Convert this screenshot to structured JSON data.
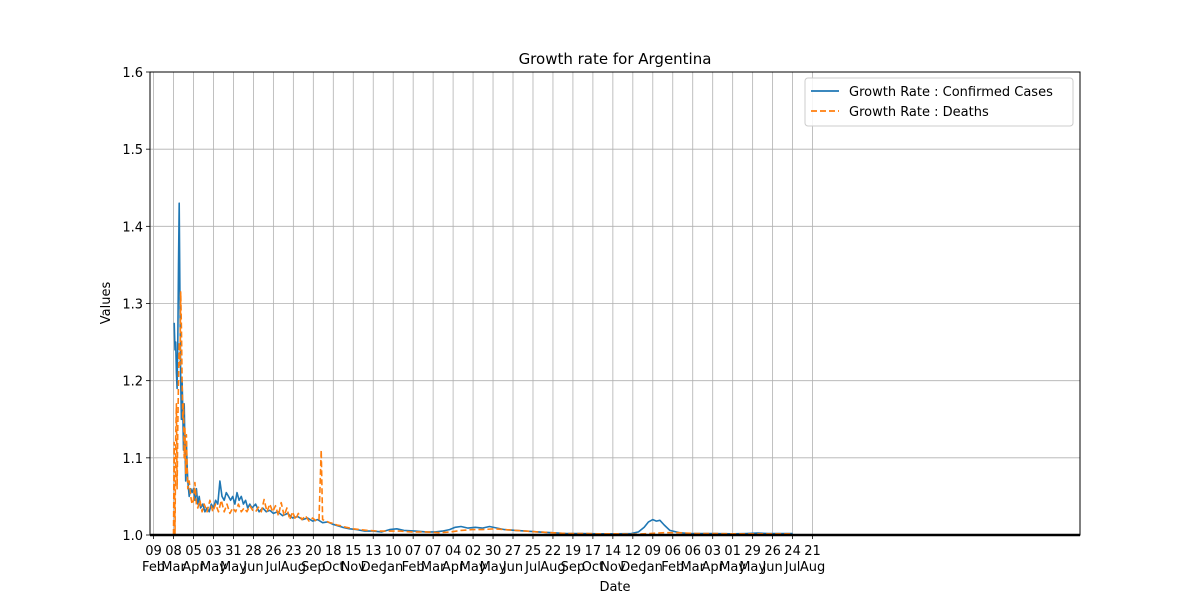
{
  "chart_data": {
    "type": "line",
    "title": "Growth rate for Argentina",
    "xlabel": "Date",
    "ylabel": "Values",
    "ylim": [
      1.0,
      1.6
    ],
    "xlim": [
      "2020-02-04",
      "2023-08-31"
    ],
    "grid": true,
    "legend_position": "top-right",
    "y_ticks": [
      "1.0",
      "1.1",
      "1.2",
      "1.3",
      "1.4",
      "1.5",
      "1.6"
    ],
    "x_ticks": [
      {
        "date": "2020-02-09",
        "day": "09",
        "month": "Feb"
      },
      {
        "date": "2020-03-08",
        "day": "08",
        "month": "Mar"
      },
      {
        "date": "2020-04-05",
        "day": "05",
        "month": "Apr"
      },
      {
        "date": "2020-05-03",
        "day": "03",
        "month": "May"
      },
      {
        "date": "2020-05-31",
        "day": "31",
        "month": "May"
      },
      {
        "date": "2020-06-28",
        "day": "28",
        "month": "Jun"
      },
      {
        "date": "2020-07-26",
        "day": "26",
        "month": "Jul"
      },
      {
        "date": "2020-08-23",
        "day": "23",
        "month": "Aug"
      },
      {
        "date": "2020-09-20",
        "day": "20",
        "month": "Sep"
      },
      {
        "date": "2020-10-18",
        "day": "18",
        "month": "Oct"
      },
      {
        "date": "2020-11-15",
        "day": "15",
        "month": "Nov"
      },
      {
        "date": "2020-12-13",
        "day": "13",
        "month": "Dec"
      },
      {
        "date": "2021-01-10",
        "day": "10",
        "month": "Jan"
      },
      {
        "date": "2021-02-07",
        "day": "07",
        "month": "Feb"
      },
      {
        "date": "2021-03-07",
        "day": "07",
        "month": "Mar"
      },
      {
        "date": "2021-04-04",
        "day": "04",
        "month": "Apr"
      },
      {
        "date": "2021-05-02",
        "day": "02",
        "month": "May"
      },
      {
        "date": "2021-05-30",
        "day": "30",
        "month": "May"
      },
      {
        "date": "2021-06-27",
        "day": "27",
        "month": "Jun"
      },
      {
        "date": "2021-07-25",
        "day": "25",
        "month": "Jul"
      },
      {
        "date": "2021-08-22",
        "day": "22",
        "month": "Aug"
      },
      {
        "date": "2021-09-19",
        "day": "19",
        "month": "Sep"
      },
      {
        "date": "2021-10-17",
        "day": "17",
        "month": "Oct"
      },
      {
        "date": "2021-11-14",
        "day": "14",
        "month": "Nov"
      },
      {
        "date": "2021-12-12",
        "day": "12",
        "month": "Dec"
      },
      {
        "date": "2022-01-09",
        "day": "09",
        "month": "Jan"
      },
      {
        "date": "2022-02-06",
        "day": "06",
        "month": "Feb"
      },
      {
        "date": "2022-03-06",
        "day": "06",
        "month": "Mar"
      },
      {
        "date": "2022-04-03",
        "day": "03",
        "month": "Apr"
      },
      {
        "date": "2022-05-01",
        "day": "01",
        "month": "May"
      },
      {
        "date": "2022-05-29",
        "day": "29",
        "month": "May"
      },
      {
        "date": "2022-06-26",
        "day": "26",
        "month": "Jun"
      },
      {
        "date": "2022-07-24",
        "day": "24",
        "month": "Jul"
      },
      {
        "date": "2022-08-21",
        "day": "21",
        "month": "Aug"
      }
    ],
    "series": [
      {
        "name": "Growth Rate : Confirmed Cases",
        "color": "#1f77b4",
        "style": "solid",
        "points": [
          [
            "2020-03-09",
            1.275
          ],
          [
            "2020-03-10",
            1.24
          ],
          [
            "2020-03-11",
            1.25
          ],
          [
            "2020-03-12",
            1.21
          ],
          [
            "2020-03-13",
            1.19
          ],
          [
            "2020-03-14",
            1.25
          ],
          [
            "2020-03-15",
            1.35
          ],
          [
            "2020-03-16",
            1.43
          ],
          [
            "2020-03-17",
            1.3
          ],
          [
            "2020-03-18",
            1.2
          ],
          [
            "2020-03-19",
            1.15
          ],
          [
            "2020-03-20",
            1.2
          ],
          [
            "2020-03-21",
            1.16
          ],
          [
            "2020-03-22",
            1.11
          ],
          [
            "2020-03-23",
            1.17
          ],
          [
            "2020-03-24",
            1.12
          ],
          [
            "2020-03-25",
            1.07
          ],
          [
            "2020-03-26",
            1.12
          ],
          [
            "2020-03-27",
            1.09
          ],
          [
            "2020-03-28",
            1.07
          ],
          [
            "2020-03-30",
            1.05
          ],
          [
            "2020-04-01",
            1.06
          ],
          [
            "2020-04-03",
            1.055
          ],
          [
            "2020-04-05",
            1.06
          ],
          [
            "2020-04-07",
            1.045
          ],
          [
            "2020-04-09",
            1.06
          ],
          [
            "2020-04-11",
            1.04
          ],
          [
            "2020-04-13",
            1.05
          ],
          [
            "2020-04-15",
            1.035
          ],
          [
            "2020-04-18",
            1.04
          ],
          [
            "2020-04-21",
            1.03
          ],
          [
            "2020-04-24",
            1.035
          ],
          [
            "2020-04-27",
            1.03
          ],
          [
            "2020-04-30",
            1.04
          ],
          [
            "2020-05-03",
            1.035
          ],
          [
            "2020-05-06",
            1.045
          ],
          [
            "2020-05-09",
            1.04
          ],
          [
            "2020-05-12",
            1.07
          ],
          [
            "2020-05-15",
            1.05
          ],
          [
            "2020-05-18",
            1.045
          ],
          [
            "2020-05-21",
            1.055
          ],
          [
            "2020-05-24",
            1.05
          ],
          [
            "2020-05-27",
            1.045
          ],
          [
            "2020-05-30",
            1.05
          ],
          [
            "2020-06-02",
            1.04
          ],
          [
            "2020-06-05",
            1.055
          ],
          [
            "2020-06-08",
            1.045
          ],
          [
            "2020-06-11",
            1.05
          ],
          [
            "2020-06-14",
            1.04
          ],
          [
            "2020-06-17",
            1.045
          ],
          [
            "2020-06-20",
            1.035
          ],
          [
            "2020-06-23",
            1.04
          ],
          [
            "2020-06-26",
            1.035
          ],
          [
            "2020-07-01",
            1.04
          ],
          [
            "2020-07-06",
            1.03
          ],
          [
            "2020-07-11",
            1.035
          ],
          [
            "2020-07-16",
            1.03
          ],
          [
            "2020-07-21",
            1.032
          ],
          [
            "2020-07-26",
            1.028
          ],
          [
            "2020-08-01",
            1.03
          ],
          [
            "2020-08-08",
            1.025
          ],
          [
            "2020-08-15",
            1.028
          ],
          [
            "2020-08-22",
            1.022
          ],
          [
            "2020-08-29",
            1.024
          ],
          [
            "2020-09-05",
            1.02
          ],
          [
            "2020-09-12",
            1.022
          ],
          [
            "2020-09-19",
            1.018
          ],
          [
            "2020-09-26",
            1.02
          ],
          [
            "2020-10-03",
            1.016
          ],
          [
            "2020-10-10",
            1.017
          ],
          [
            "2020-10-17",
            1.014
          ],
          [
            "2020-10-24",
            1.012
          ],
          [
            "2020-10-31",
            1.01
          ],
          [
            "2020-11-10",
            1.008
          ],
          [
            "2020-11-20",
            1.007
          ],
          [
            "2020-12-01",
            1.005
          ],
          [
            "2020-12-13",
            1.005
          ],
          [
            "2020-12-25",
            1.004
          ],
          [
            "2021-01-05",
            1.007
          ],
          [
            "2021-01-15",
            1.008
          ],
          [
            "2021-01-25",
            1.006
          ],
          [
            "2021-02-10",
            1.005
          ],
          [
            "2021-02-25",
            1.004
          ],
          [
            "2021-03-10",
            1.004
          ],
          [
            "2021-03-20",
            1.005
          ],
          [
            "2021-03-30",
            1.007
          ],
          [
            "2021-04-07",
            1.01
          ],
          [
            "2021-04-15",
            1.011
          ],
          [
            "2021-04-25",
            1.009
          ],
          [
            "2021-05-05",
            1.01
          ],
          [
            "2021-05-15",
            1.009
          ],
          [
            "2021-05-25",
            1.011
          ],
          [
            "2021-06-05",
            1.009
          ],
          [
            "2021-06-15",
            1.007
          ],
          [
            "2021-07-01",
            1.006
          ],
          [
            "2021-07-15",
            1.005
          ],
          [
            "2021-08-01",
            1.004
          ],
          [
            "2021-08-20",
            1.003
          ],
          [
            "2021-09-10",
            1.002
          ],
          [
            "2021-10-01",
            1.002
          ],
          [
            "2021-10-25",
            1.0015
          ],
          [
            "2021-11-20",
            1.0015
          ],
          [
            "2021-12-10",
            1.002
          ],
          [
            "2021-12-20",
            1.004
          ],
          [
            "2021-12-28",
            1.01
          ],
          [
            "2022-01-03",
            1.017
          ],
          [
            "2022-01-09",
            1.02
          ],
          [
            "2022-01-14",
            1.018
          ],
          [
            "2022-01-19",
            1.019
          ],
          [
            "2022-01-25",
            1.013
          ],
          [
            "2022-02-02",
            1.006
          ],
          [
            "2022-02-15",
            1.003
          ],
          [
            "2022-03-01",
            1.002
          ],
          [
            "2022-04-01",
            1.002
          ],
          [
            "2022-05-01",
            1.0015
          ],
          [
            "2022-05-20",
            1.002
          ],
          [
            "2022-06-05",
            1.0025
          ],
          [
            "2022-06-20",
            1.002
          ],
          [
            "2022-07-05",
            1.002
          ],
          [
            "2022-07-24",
            1.002
          ]
        ]
      },
      {
        "name": "Growth Rate : Deaths",
        "color": "#ff7f0e",
        "style": "dashed",
        "points": [
          [
            "2020-03-08",
            1.0
          ],
          [
            "2020-03-09",
            1.12
          ],
          [
            "2020-03-10",
            1.0
          ],
          [
            "2020-03-11",
            1.125
          ],
          [
            "2020-03-12",
            1.17
          ],
          [
            "2020-03-13",
            1.06
          ],
          [
            "2020-03-14",
            1.14
          ],
          [
            "2020-03-15",
            1.2
          ],
          [
            "2020-03-16",
            1.25
          ],
          [
            "2020-03-17",
            1.22
          ],
          [
            "2020-03-18",
            1.315
          ],
          [
            "2020-03-19",
            1.27
          ],
          [
            "2020-03-20",
            1.2
          ],
          [
            "2020-03-21",
            1.15
          ],
          [
            "2020-03-22",
            1.17
          ],
          [
            "2020-03-23",
            1.1
          ],
          [
            "2020-03-24",
            1.14
          ],
          [
            "2020-03-25",
            1.08
          ],
          [
            "2020-03-26",
            1.13
          ],
          [
            "2020-03-27",
            1.09
          ],
          [
            "2020-03-28",
            1.06
          ],
          [
            "2020-03-30",
            1.07
          ],
          [
            "2020-04-01",
            1.05
          ],
          [
            "2020-04-03",
            1.04
          ],
          [
            "2020-04-05",
            1.045
          ],
          [
            "2020-04-07",
            1.068
          ],
          [
            "2020-04-09",
            1.04
          ],
          [
            "2020-04-11",
            1.035
          ],
          [
            "2020-04-14",
            1.045
          ],
          [
            "2020-04-17",
            1.03
          ],
          [
            "2020-04-20",
            1.04
          ],
          [
            "2020-04-24",
            1.03
          ],
          [
            "2020-04-28",
            1.045
          ],
          [
            "2020-05-02",
            1.03
          ],
          [
            "2020-05-06",
            1.04
          ],
          [
            "2020-05-10",
            1.03
          ],
          [
            "2020-05-14",
            1.045
          ],
          [
            "2020-05-18",
            1.03
          ],
          [
            "2020-05-22",
            1.04
          ],
          [
            "2020-05-26",
            1.028
          ],
          [
            "2020-05-30",
            1.035
          ],
          [
            "2020-06-03",
            1.03
          ],
          [
            "2020-06-07",
            1.04
          ],
          [
            "2020-06-11",
            1.03
          ],
          [
            "2020-06-15",
            1.035
          ],
          [
            "2020-06-19",
            1.03
          ],
          [
            "2020-06-23",
            1.038
          ],
          [
            "2020-06-27",
            1.032
          ],
          [
            "2020-07-01",
            1.03
          ],
          [
            "2020-07-05",
            1.036
          ],
          [
            "2020-07-09",
            1.03
          ],
          [
            "2020-07-13",
            1.046
          ],
          [
            "2020-07-17",
            1.03
          ],
          [
            "2020-07-21",
            1.04
          ],
          [
            "2020-07-25",
            1.03
          ],
          [
            "2020-07-29",
            1.038
          ],
          [
            "2020-08-02",
            1.025
          ],
          [
            "2020-08-06",
            1.042
          ],
          [
            "2020-08-10",
            1.025
          ],
          [
            "2020-08-14",
            1.035
          ],
          [
            "2020-08-18",
            1.02
          ],
          [
            "2020-08-22",
            1.03
          ],
          [
            "2020-08-26",
            1.02
          ],
          [
            "2020-08-30",
            1.028
          ],
          [
            "2020-09-04",
            1.02
          ],
          [
            "2020-09-09",
            1.025
          ],
          [
            "2020-09-14",
            1.018
          ],
          [
            "2020-09-19",
            1.022
          ],
          [
            "2020-09-24",
            1.018
          ],
          [
            "2020-09-28",
            1.02
          ],
          [
            "2020-10-01",
            1.11
          ],
          [
            "2020-10-03",
            1.02
          ],
          [
            "2020-10-08",
            1.018
          ],
          [
            "2020-10-13",
            1.016
          ],
          [
            "2020-10-18",
            1.015
          ],
          [
            "2020-10-23",
            1.013
          ],
          [
            "2020-10-28",
            1.012
          ],
          [
            "2020-11-05",
            1.01
          ],
          [
            "2020-11-15",
            1.008
          ],
          [
            "2020-11-25",
            1.007
          ],
          [
            "2020-12-05",
            1.006
          ],
          [
            "2020-12-20",
            1.005
          ],
          [
            "2021-01-05",
            1.005
          ],
          [
            "2021-01-20",
            1.005
          ],
          [
            "2021-02-05",
            1.004
          ],
          [
            "2021-02-25",
            1.004
          ],
          [
            "2021-03-15",
            1.003
          ],
          [
            "2021-04-01",
            1.004
          ],
          [
            "2021-04-15",
            1.006
          ],
          [
            "2021-05-01",
            1.007
          ],
          [
            "2021-05-15",
            1.007
          ],
          [
            "2021-06-01",
            1.008
          ],
          [
            "2021-06-15",
            1.007
          ],
          [
            "2021-07-01",
            1.006
          ],
          [
            "2021-07-15",
            1.005
          ],
          [
            "2021-08-01",
            1.004
          ],
          [
            "2021-08-20",
            1.003
          ],
          [
            "2021-09-10",
            1.002
          ],
          [
            "2021-10-01",
            1.002
          ],
          [
            "2021-10-25",
            1.0015
          ],
          [
            "2021-11-20",
            1.0015
          ],
          [
            "2021-12-15",
            1.001
          ],
          [
            "2022-01-05",
            1.002
          ],
          [
            "2022-01-25",
            1.003
          ],
          [
            "2022-02-15",
            1.003
          ],
          [
            "2022-03-10",
            1.002
          ],
          [
            "2022-04-05",
            1.002
          ],
          [
            "2022-05-01",
            1.0015
          ],
          [
            "2022-05-25",
            1.0015
          ],
          [
            "2022-06-20",
            1.0015
          ],
          [
            "2022-07-24",
            1.0015
          ]
        ]
      }
    ]
  }
}
